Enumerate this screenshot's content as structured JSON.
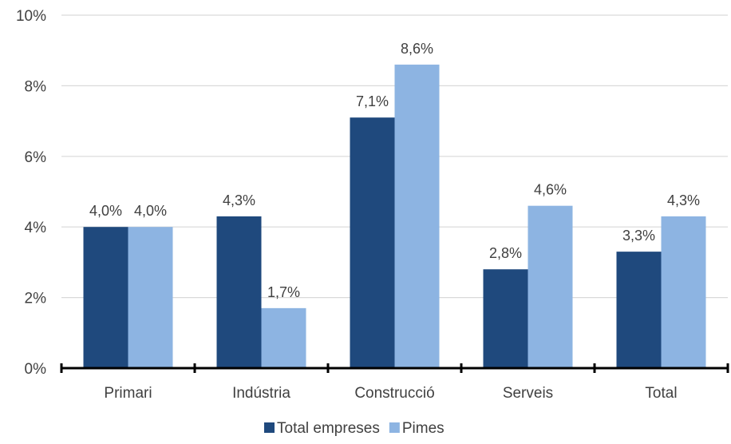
{
  "chart_data": {
    "type": "bar",
    "categories": [
      "Primari",
      "Indústria",
      "Construcció",
      "Serveis",
      "Total"
    ],
    "series": [
      {
        "name": "Total empreses",
        "values": [
          4.0,
          4.3,
          7.1,
          2.8,
          3.3
        ],
        "color": "#1F497D",
        "labels": [
          "4,0%",
          "4,3%",
          "7,1%",
          "2,8%",
          "3,3%"
        ]
      },
      {
        "name": "Pimes",
        "values": [
          4.0,
          1.7,
          8.6,
          4.6,
          4.3
        ],
        "color": "#8DB4E2",
        "labels": [
          "4,0%",
          "1,7%",
          "8,6%",
          "4,6%",
          "4,3%"
        ]
      }
    ],
    "ylim": [
      0,
      10
    ],
    "yticks": [
      0,
      2,
      4,
      6,
      8,
      10
    ],
    "ytick_labels": [
      "0%",
      "2%",
      "4%",
      "6%",
      "8%",
      "10%"
    ],
    "grid": true,
    "legend_position": "bottom-center",
    "title": "",
    "xlabel": "",
    "ylabel": ""
  }
}
